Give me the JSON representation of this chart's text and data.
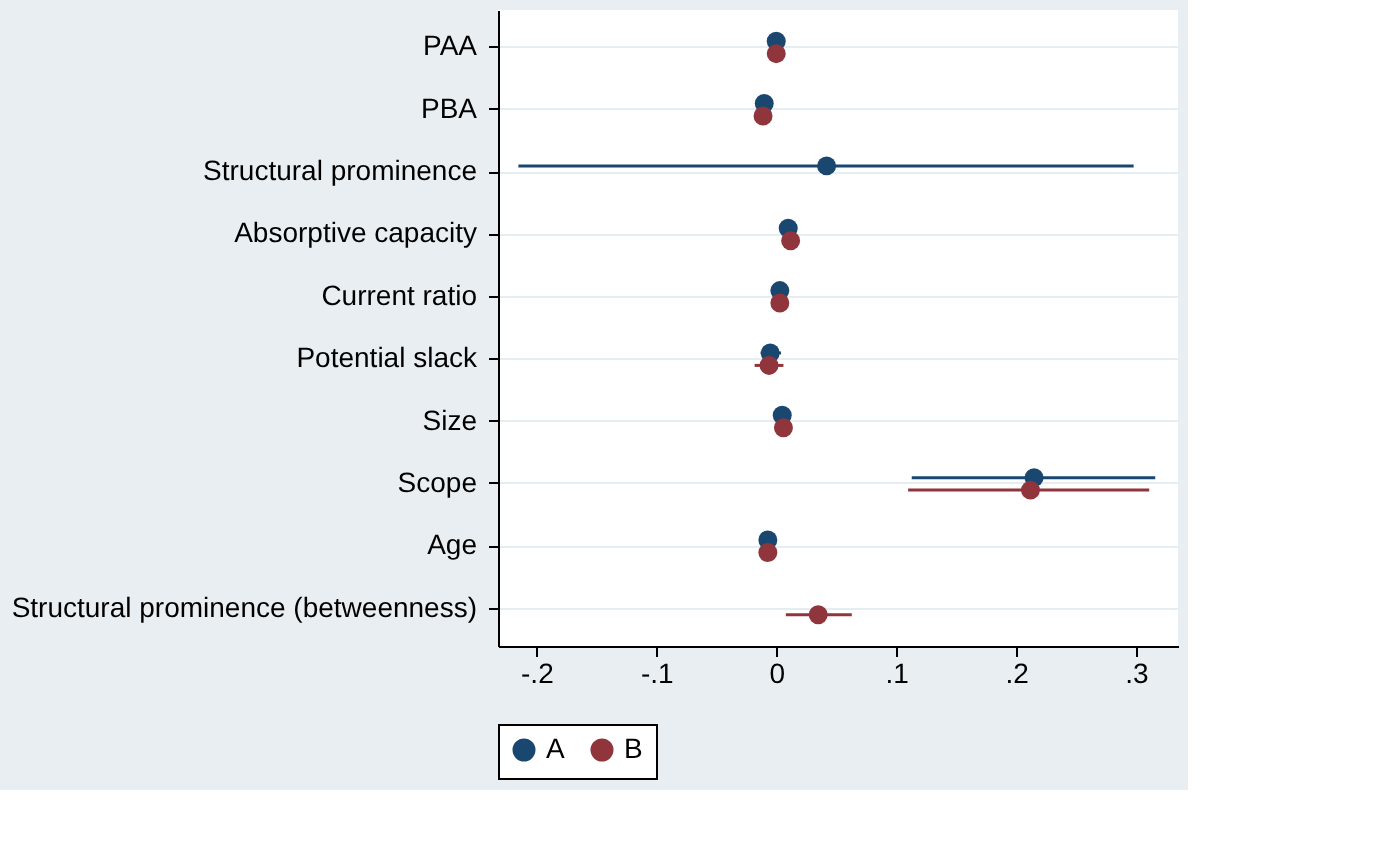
{
  "chart_data": {
    "type": "scatter",
    "orientation": "horizontal",
    "categories": [
      "PAA",
      "PBA",
      "Structural prominence",
      "Absorptive capacity",
      "Current ratio",
      "Potential slack",
      "Size",
      "Scope",
      "Age",
      "Structural prominence (betweenness)"
    ],
    "series": [
      {
        "name": "A",
        "color": "#1a476f",
        "values": [
          0.0,
          -0.01,
          0.042,
          0.01,
          0.003,
          -0.005,
          0.005,
          0.215,
          -0.007,
          null
        ],
        "errors": [
          null,
          null,
          [
            -0.215,
            0.298
          ],
          null,
          null,
          [
            -0.013,
            0.004
          ],
          null,
          [
            0.113,
            0.316
          ],
          null,
          null
        ]
      },
      {
        "name": "B",
        "color": "#90353b",
        "values": [
          0.0,
          -0.011,
          null,
          0.012,
          0.003,
          -0.006,
          0.006,
          0.212,
          -0.007,
          0.035
        ],
        "errors": [
          null,
          null,
          null,
          null,
          null,
          [
            -0.018,
            0.006
          ],
          null,
          [
            0.11,
            0.311
          ],
          null,
          [
            0.008,
            0.063
          ]
        ]
      }
    ],
    "xlim": [
      -0.232,
      0.335
    ],
    "xticks": [
      {
        "value": -0.2,
        "label": "-.2"
      },
      {
        "value": -0.1,
        "label": "-.1"
      },
      0,
      {
        "value": 0.1,
        "label": ".1"
      },
      {
        "value": 0.2,
        "label": ".2"
      },
      {
        "value": 0.3,
        "label": ".3"
      }
    ],
    "grid": "y",
    "legend": "bottom",
    "marker": "circle"
  }
}
